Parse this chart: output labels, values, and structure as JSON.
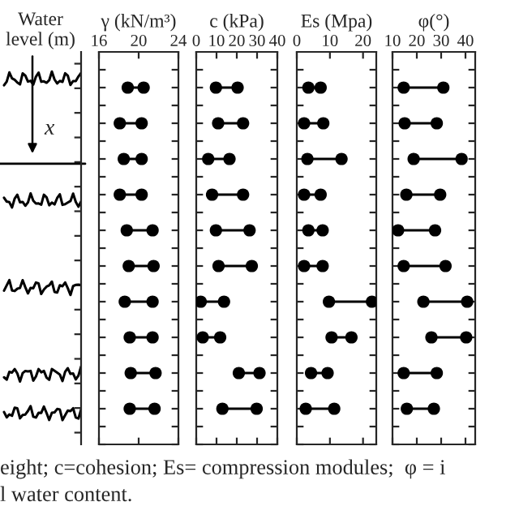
{
  "chart_data": [
    {
      "type": "other",
      "title": "Water\nlevel (m)",
      "annotations": [
        "x",
        "eight; c=cohesion; Es= compression modules;  φ = i\nl water content."
      ]
    },
    {
      "type": "scatter",
      "orientation": "horizontal",
      "title": "γ (kN/m³)",
      "categories": [
        null,
        null,
        null,
        null,
        null,
        null,
        null,
        null,
        null,
        null
      ],
      "series": [
        {
          "color": "#000000",
          "values": [
            18.9,
            18.1,
            18.5,
            18.1,
            18.8,
            19.0,
            18.6,
            19.1,
            19.2,
            19.1
          ]
        },
        {
          "color": "#000000",
          "values": [
            20.5,
            20.3,
            20.3,
            20.3,
            21.4,
            21.5,
            21.4,
            21.4,
            21.7,
            21.6
          ]
        }
      ],
      "marker": "circle",
      "xlim": [
        16,
        24
      ],
      "xticks": [
        16,
        20,
        24
      ],
      "tick_labels": "x",
      "grid": false
    },
    {
      "type": "scatter",
      "orientation": "horizontal",
      "title": "c (kPa)",
      "categories": [
        null,
        null,
        null,
        null,
        null,
        null,
        null,
        null,
        null,
        null
      ],
      "series": [
        {
          "color": "#000000",
          "values": [
            9.7,
            10.8,
            5.9,
            7.8,
            9.7,
            11.0,
            2.2,
            3.2,
            21.0,
            12.9
          ]
        },
        {
          "color": "#000000",
          "values": [
            20.4,
            23.1,
            16.4,
            23.1,
            26.3,
            27.4,
            13.7,
            11.8,
            31.2,
            29.8
          ]
        }
      ],
      "marker": "circle",
      "xlim": [
        0,
        40
      ],
      "xticks": [
        0,
        10,
        20,
        30,
        40
      ],
      "tick_labels": "x",
      "grid": false
    },
    {
      "type": "scatter",
      "orientation": "horizontal",
      "title": "Es (Mpa)",
      "categories": [
        null,
        null,
        null,
        null,
        null,
        null,
        null,
        null,
        null,
        null
      ],
      "series": [
        {
          "color": "#000000",
          "values": [
            3.5,
            2.2,
            3.2,
            2.2,
            3.5,
            2.2,
            9.7,
            10.5,
            4.3,
            2.7
          ]
        },
        {
          "color": "#000000",
          "values": [
            7.2,
            8.0,
            13.5,
            7.2,
            7.8,
            7.8,
            22.7,
            16.5,
            9.3,
            11.3
          ]
        }
      ],
      "marker": "circle",
      "xlim": [
        0,
        24
      ],
      "xticks": [
        0,
        10,
        20
      ],
      "tick_labels": "x",
      "grid": false
    },
    {
      "type": "scatter",
      "orientation": "horizontal",
      "title": "φ(°)",
      "categories": [
        null,
        null,
        null,
        null,
        null,
        null,
        null,
        null,
        null,
        null
      ],
      "series": [
        {
          "color": "#000000",
          "values": [
            14.6,
            15.0,
            18.7,
            15.7,
            12.3,
            14.6,
            22.7,
            26.0,
            14.6,
            15.9
          ]
        },
        {
          "color": "#000000",
          "values": [
            30.9,
            28.2,
            38.4,
            29.6,
            27.5,
            31.8,
            40.7,
            40.3,
            28.2,
            27.0
          ]
        }
      ],
      "marker": "circle",
      "xlim": [
        10,
        44
      ],
      "xticks": [
        10,
        20,
        30,
        40
      ],
      "tick_labels": "x",
      "grid": false
    }
  ]
}
